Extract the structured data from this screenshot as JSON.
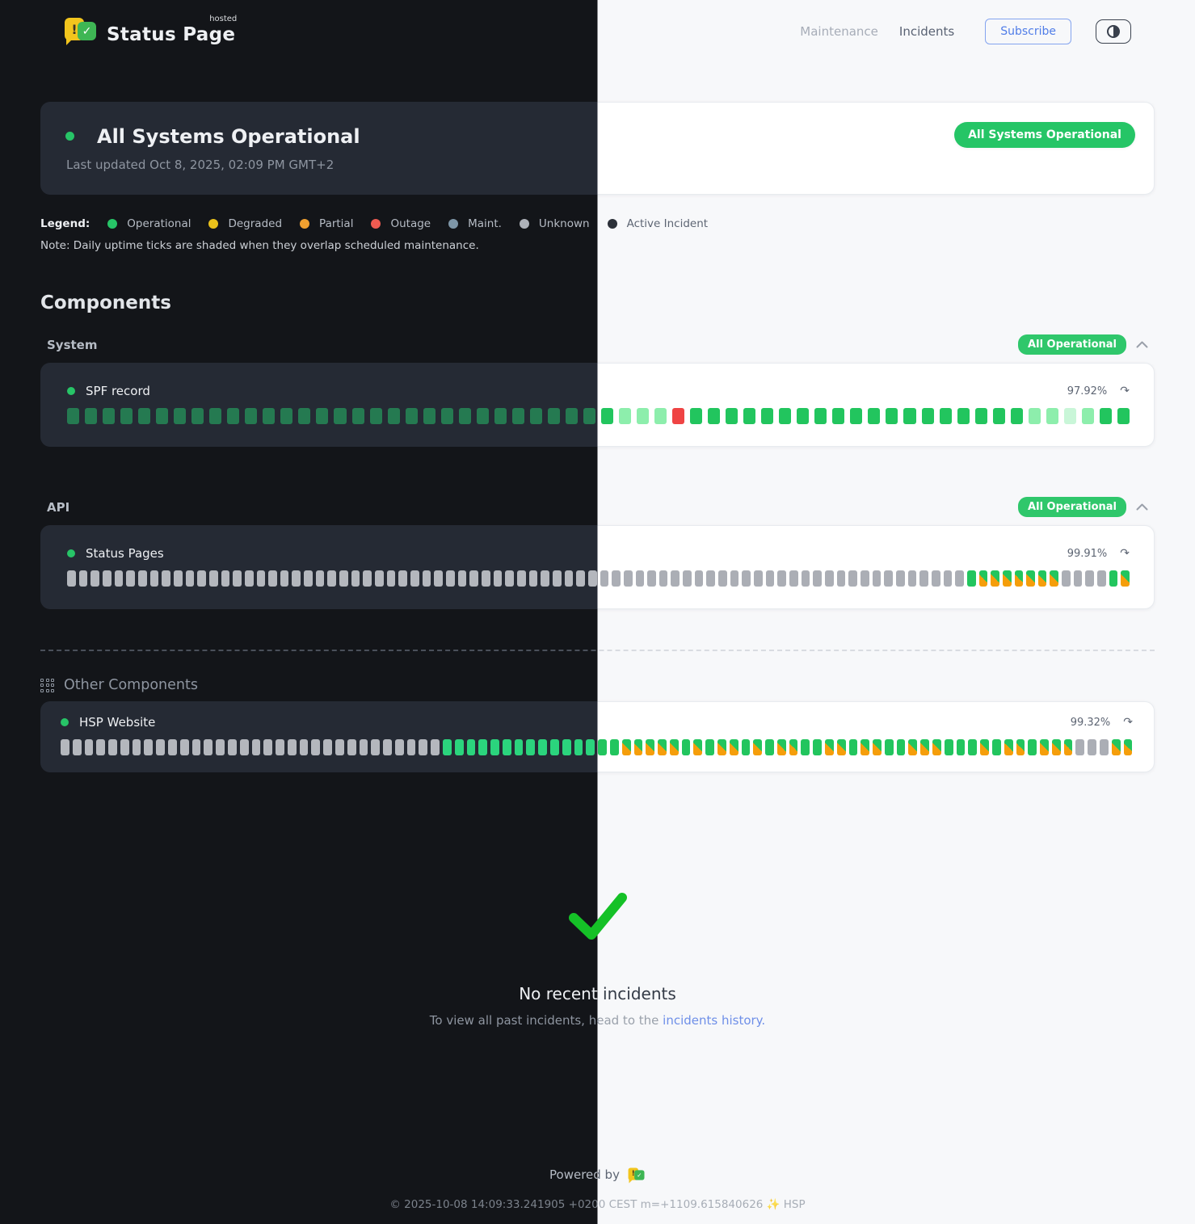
{
  "header": {
    "logo_title": "Status Page",
    "logo_badge": "hosted",
    "nav": [
      {
        "label": "Maintenance"
      },
      {
        "label": "Incidents"
      }
    ],
    "subscribe_label": "Subscribe",
    "theme_toggle_icon": "contrast-half-circle-icon"
  },
  "overall": {
    "title": "All Systems Operational",
    "last_updated": "Last updated Oct 8, 2025, 02:09 PM GMT+2",
    "badge": "All Systems Operational"
  },
  "legend": {
    "label": "Legend:",
    "items": [
      {
        "key": "operational",
        "label": "Operational",
        "color": "#27c467"
      },
      {
        "key": "degraded",
        "label": "Degraded",
        "color": "#e9c11b"
      },
      {
        "key": "partial",
        "label": "Partial",
        "color": "#f0a030"
      },
      {
        "key": "outage",
        "label": "Outage",
        "color": "#ee5b51"
      },
      {
        "key": "maint",
        "label": "Maint.",
        "color": "#7e96a8"
      },
      {
        "key": "unknown",
        "label": "Unknown",
        "color": "#aeb2b9"
      },
      {
        "key": "active",
        "label": "Active Incident",
        "color": "#2c3139"
      }
    ],
    "note": "Note: Daily uptime ticks are shaded when they overlap scheduled maintenance."
  },
  "components": {
    "heading": "Components",
    "tick_legend": {
      "o": "operational",
      "l": "operational-light",
      "L": "operational-lighter",
      "x": "outage",
      "u": "unknown",
      "m": "maintenance-shaded"
    },
    "groups": [
      {
        "name": "System",
        "badge": "All Operational",
        "items": [
          {
            "name": "SPF record",
            "uptime": "97.92%",
            "tone": "muted",
            "ticks": "ooooooooooooooooooooooooooooooolllxooooooooooooooooooollLloo"
          }
        ]
      },
      {
        "name": "API",
        "badge": "All Operational",
        "items": [
          {
            "name": "Status Pages",
            "uptime": "99.91%",
            "tone": "bright",
            "ticks": "uuuuuuuuuuuuuuuuuuuuuuuuuuuuuuuuuuuuuuuuuuuuuuuuuuuuuuuuuuuuuuuuuuuuuuuuuuuuommmmmmmuuuuom"
          }
        ]
      }
    ],
    "other": {
      "name": "Other Components",
      "items": [
        {
          "name": "HSP Website",
          "uptime": "99.32%",
          "tone": "bright",
          "ticks": "uuuuuuuuuuuuuuuuuuuuuuuuuuuuuuuuooooooooooooooommmmmomommomommoommommoommmooomommommmuuumm"
        }
      ]
    }
  },
  "incidents": {
    "title": "No recent incidents",
    "subtitle_prefix": "To view all past incidents, head to the ",
    "link_label": "incidents history."
  },
  "footer": {
    "powered_by": "Powered by",
    "copyright": "© 2025-10-08 14:09:33.241905 +0200 CEST m=+1109.615840626 ✨ HSP"
  },
  "colors": {
    "operational_green": "#22c55e",
    "badge_green": "#25c566",
    "outage_red": "#ef4444",
    "maintenance_orange": "#f59e0b",
    "unknown_gray": "#abaeb5",
    "link_blue": "#6e8fe8",
    "subscribe_blue": "#507de8",
    "dark_bg": "#131519",
    "light_bg": "#f7f8fa"
  }
}
